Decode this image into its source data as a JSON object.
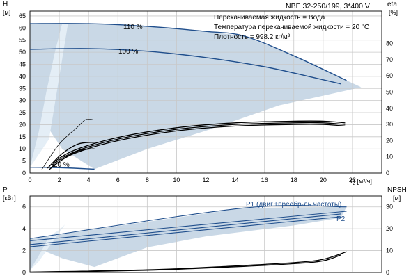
{
  "header": {
    "model": "NBE 32-250/199, 3*400 V",
    "info": [
      "Перекачиваемая жидкость = Вода",
      "Температура перекачиваемой жидкости = 20 °C",
      "Плотность = 998.2 кг/м³"
    ]
  },
  "colors": {
    "curve": "#1f4e8c",
    "band": "#c9d8e6",
    "band_light": "#e4eef6",
    "grid": "#c8c8c8",
    "eta": "#000000"
  },
  "chart_data": [
    {
      "type": "line",
      "id": "upper",
      "xlabel": "Q [м³/ч]",
      "ylabel_left": "H",
      "ylabel_left_unit": "[м]",
      "ylabel_right": "eta",
      "ylabel_right_unit": "[%]",
      "xlim": [
        0,
        24
      ],
      "xticks": [
        0,
        2,
        4,
        6,
        8,
        10,
        12,
        14,
        16,
        18,
        20,
        22
      ],
      "ylim": [
        0,
        67
      ],
      "yticks": [
        0,
        5,
        10,
        15,
        20,
        25,
        30,
        35,
        40,
        45,
        50,
        55,
        60,
        65
      ],
      "ylim_right": [
        0,
        100
      ],
      "yticks_right": [
        0,
        10,
        20,
        30,
        40,
        50,
        60,
        70,
        80
      ],
      "grid": true,
      "series": [
        {
          "name": "110 %",
          "axis": "left",
          "style": "head",
          "x": [
            0,
            4,
            8,
            12,
            14.6,
            18,
            21.6
          ],
          "y": [
            61.8,
            61.8,
            60.7,
            58.6,
            56.7,
            48.5,
            38.3
          ]
        },
        {
          "name": "100 %",
          "axis": "left",
          "style": "head",
          "x": [
            0,
            4,
            8,
            12,
            16,
            19,
            21.2
          ],
          "y": [
            51.2,
            51.5,
            50.4,
            47.8,
            44,
            40,
            36.9
          ]
        },
        {
          "name": "20 %",
          "axis": "left",
          "style": "head",
          "x": [
            0,
            1.5,
            3,
            4.4
          ],
          "y": [
            2.4,
            2.3,
            2.0,
            1.6
          ]
        },
        {
          "axis": "right",
          "style": "eta",
          "x": [
            0.8,
            2,
            3.2,
            3.8,
            4.3
          ],
          "y": [
            2,
            18,
            28,
            33,
            33
          ]
        },
        {
          "axis": "right",
          "style": "eta",
          "x": [
            1.2,
            2.2,
            3.3,
            4.4
          ],
          "y": [
            3,
            12,
            18,
            19
          ]
        },
        {
          "axis": "right",
          "style": "eta",
          "x": [
            1.3,
            2.3,
            3.4,
            4.4
          ],
          "y": [
            2,
            9,
            14,
            15
          ]
        },
        {
          "axis": "right",
          "style": "eta",
          "x": [
            1.5,
            3,
            6,
            10,
            14,
            18,
            20,
            21.5
          ],
          "y": [
            6,
            14,
            22,
            28,
            31,
            32,
            32,
            31
          ]
        },
        {
          "axis": "right",
          "style": "eta",
          "x": [
            1.5,
            3,
            6,
            10,
            14,
            18,
            20,
            21.5
          ],
          "y": [
            5,
            13,
            21,
            27,
            30,
            31,
            31,
            30
          ]
        },
        {
          "axis": "right",
          "style": "eta",
          "x": [
            1.5,
            3,
            6,
            10,
            14,
            18,
            20,
            21.5
          ],
          "y": [
            4,
            12,
            20,
            26,
            29,
            30,
            30,
            29
          ]
        }
      ],
      "band": {
        "x": [
          0,
          4,
          8,
          12,
          14.6,
          18,
          21.6,
          22.6,
          17,
          12,
          8,
          4.4,
          2.2,
          1.1,
          0
        ],
        "y": [
          61.8,
          61.8,
          60.7,
          58.6,
          56.7,
          48.5,
          38.3,
          35.5,
          28,
          17.5,
          10,
          1.6,
          10,
          20,
          2.4
        ]
      },
      "band_light": {
        "x": [
          1.3,
          2.6,
          2.2,
          1.7,
          1.1,
          0.6,
          0
        ],
        "y": [
          14,
          62,
          62,
          50,
          33,
          17,
          2.4
        ]
      }
    },
    {
      "type": "line",
      "id": "lower",
      "ylabel_left": "P",
      "ylabel_left_unit": "[кВт]",
      "ylabel_right": "NPSH",
      "ylabel_right_unit": "[м]",
      "xlim": [
        0,
        24
      ],
      "ylim": [
        0,
        7
      ],
      "yticks": [
        0,
        2,
        4,
        6
      ],
      "ylim_right": [
        0,
        35
      ],
      "yticks_right": [
        0,
        10,
        20,
        30
      ],
      "grid": true,
      "series": [
        {
          "name": "P1 (двиг.+преобр-ль частоты)",
          "axis": "left",
          "style": "power",
          "x": [
            0,
            14.6,
            21.6
          ],
          "y": [
            3.1,
            5.9,
            6.0
          ]
        },
        {
          "axis": "left",
          "style": "power",
          "x": [
            0,
            21.6
          ],
          "y": [
            2.9,
            5.6
          ]
        },
        {
          "name": "P2",
          "axis": "left",
          "style": "power",
          "x": [
            0,
            21.2
          ],
          "y": [
            2.55,
            5.35
          ]
        },
        {
          "axis": "left",
          "style": "power",
          "x": [
            0,
            21.2
          ],
          "y": [
            2.35,
            5.1
          ]
        },
        {
          "axis": "right",
          "style": "npsh",
          "x": [
            0,
            8,
            14,
            18,
            20,
            21.6
          ],
          "y": [
            0.2,
            1.2,
            3,
            4.5,
            6,
            9.5
          ]
        },
        {
          "axis": "right",
          "style": "npsh",
          "x": [
            0,
            8,
            14,
            18,
            20,
            21.2
          ],
          "y": [
            0.1,
            1.0,
            2.6,
            4,
            5.3,
            8
          ]
        }
      ],
      "band": {
        "x": [
          0,
          14.6,
          21.6,
          21.2,
          18,
          12,
          8,
          4.4,
          2.2,
          1.1,
          0
        ],
        "y": [
          3.1,
          5.9,
          6.0,
          5.0,
          4.3,
          3.3,
          2.3,
          0.5,
          1.3,
          1.9,
          0.2
        ]
      },
      "band_light": {
        "x": [
          0.6,
          2.4,
          2.0,
          1.3,
          0.8,
          0
        ],
        "y": [
          1.0,
          4.4,
          3.9,
          3.3,
          2.0,
          0.2
        ]
      }
    }
  ]
}
